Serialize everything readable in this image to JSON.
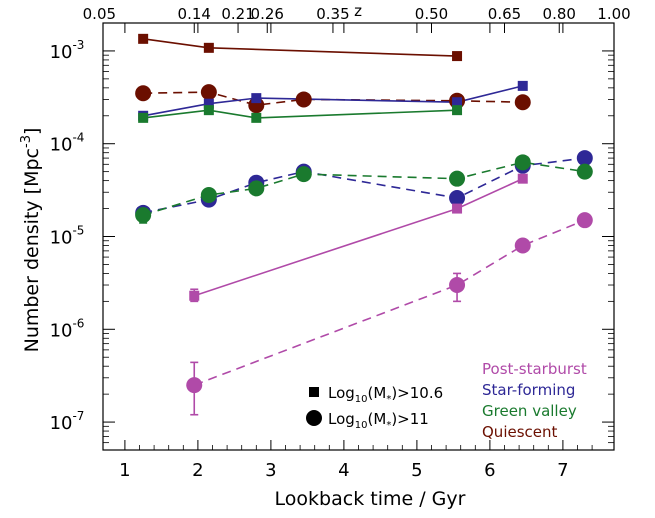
{
  "chart_data": {
    "type": "scatter",
    "xlabel": "Lookback time / Gyr",
    "ylabel": "Number density [Mpc",
    "ylabel_sup": "-3",
    "ylabel_close": "]",
    "top_axis_label": "z",
    "xlim": [
      0.7,
      7.7
    ],
    "ylim": [
      5e-08,
      0.002
    ],
    "y_scale": "log",
    "x_ticks": [
      "1",
      "2",
      "3",
      "4",
      "5",
      "6",
      "7"
    ],
    "top_ticks": [
      {
        "x": 0.65,
        "label": "0.05"
      },
      {
        "x": 1.95,
        "label": "0.14"
      },
      {
        "x": 2.55,
        "label": "0.21"
      },
      {
        "x": 2.95,
        "label": "0.26"
      },
      {
        "x": 3.85,
        "label": "0.35"
      },
      {
        "x": 5.2,
        "label": "0.50"
      },
      {
        "x": 6.2,
        "label": "0.65"
      },
      {
        "x": 6.95,
        "label": "0.80"
      },
      {
        "x": 7.7,
        "label": "1.00"
      }
    ],
    "y_ticks": [
      {
        "exp": "-7"
      },
      {
        "exp": "-6"
      },
      {
        "exp": "-5"
      },
      {
        "exp": "-4"
      },
      {
        "exp": "-3"
      }
    ],
    "y_tick_base": "10",
    "series": [
      {
        "name": "Quiescent",
        "color": "#6b0f00",
        "marker": "square",
        "dash": false,
        "points": [
          {
            "x": 1.25,
            "y": 0.00135
          },
          {
            "x": 2.15,
            "y": 0.00108
          },
          {
            "x": 5.55,
            "y": 0.00088
          }
        ]
      },
      {
        "name": "Quiescent",
        "color": "#6b0f00",
        "marker": "circle",
        "dash": true,
        "points": [
          {
            "x": 1.25,
            "y": 0.00035
          },
          {
            "x": 2.15,
            "y": 0.00036
          },
          {
            "x": 2.8,
            "y": 0.00026
          },
          {
            "x": 3.45,
            "y": 0.0003
          },
          {
            "x": 5.55,
            "y": 0.00029
          },
          {
            "x": 6.45,
            "y": 0.00028
          }
        ]
      },
      {
        "name": "Star-forming",
        "color": "#2e2896",
        "marker": "square",
        "dash": false,
        "points": [
          {
            "x": 1.25,
            "y": 0.0002
          },
          {
            "x": 2.15,
            "y": 0.00027
          },
          {
            "x": 2.8,
            "y": 0.00031
          },
          {
            "x": 5.55,
            "y": 0.00028
          },
          {
            "x": 6.45,
            "y": 0.00042
          }
        ]
      },
      {
        "name": "Green valley",
        "color": "#1a7a2e",
        "marker": "square",
        "dash": false,
        "points": [
          {
            "x": 1.25,
            "y": 0.00019
          },
          {
            "x": 2.15,
            "y": 0.00023
          },
          {
            "x": 2.8,
            "y": 0.00019
          },
          {
            "x": 5.55,
            "y": 0.00023
          }
        ]
      },
      {
        "name": "Star-forming",
        "color": "#2e2896",
        "marker": "circle",
        "dash": true,
        "points": [
          {
            "x": 1.25,
            "y": 1.8e-05
          },
          {
            "x": 2.15,
            "y": 2.5e-05
          },
          {
            "x": 2.8,
            "y": 3.8e-05
          },
          {
            "x": 3.45,
            "y": 5e-05
          },
          {
            "x": 5.55,
            "y": 2.6e-05
          },
          {
            "x": 6.45,
            "y": 5.8e-05
          },
          {
            "x": 7.3,
            "y": 7e-05
          }
        ]
      },
      {
        "name": "Green valley",
        "color": "#1a7a2e",
        "marker": "circle",
        "dash": true,
        "points": [
          {
            "x": 1.25,
            "y": 1.7e-05,
            "err_lo": 1.4e-05,
            "err_hi": 2e-05
          },
          {
            "x": 2.15,
            "y": 2.8e-05
          },
          {
            "x": 2.8,
            "y": 3.3e-05
          },
          {
            "x": 3.45,
            "y": 4.7e-05
          },
          {
            "x": 5.55,
            "y": 4.2e-05
          },
          {
            "x": 6.45,
            "y": 6.3e-05
          },
          {
            "x": 7.3,
            "y": 5e-05
          }
        ]
      },
      {
        "name": "Post-starburst",
        "color": "#b04aa8",
        "marker": "square",
        "dash": false,
        "points": [
          {
            "x": 1.95,
            "y": 2.3e-06,
            "err_lo": 2e-06,
            "err_hi": 2.7e-06
          },
          {
            "x": 5.55,
            "y": 2e-05
          },
          {
            "x": 6.45,
            "y": 4.2e-05
          }
        ]
      },
      {
        "name": "Post-starburst",
        "color": "#b04aa8",
        "marker": "circle",
        "dash": true,
        "points": [
          {
            "x": 1.95,
            "y": 2.5e-07,
            "err_lo": 1.2e-07,
            "err_hi": 4.4e-07
          },
          {
            "x": 5.55,
            "y": 3e-06,
            "err_lo": 2e-06,
            "err_hi": 4e-06
          },
          {
            "x": 6.45,
            "y": 8e-06
          },
          {
            "x": 7.3,
            "y": 1.5e-05
          }
        ]
      }
    ],
    "legend_markers": [
      {
        "marker": "square",
        "base": "Log",
        "sub": "10",
        "mid": "(M",
        "sub2": "*",
        "tail": ")>10.6"
      },
      {
        "marker": "circle",
        "base": "Log",
        "sub": "10",
        "mid": "(M",
        "sub2": "*",
        "tail": ")>11"
      }
    ],
    "legend_colors": [
      {
        "label": "Post-starburst",
        "color": "#b04aa8"
      },
      {
        "label": "Star-forming",
        "color": "#2e2896"
      },
      {
        "label": "Green valley",
        "color": "#1a7a2e"
      },
      {
        "label": "Quiescent",
        "color": "#6b0f00"
      }
    ],
    "grid": false,
    "legend_placement": "bottom-right"
  }
}
